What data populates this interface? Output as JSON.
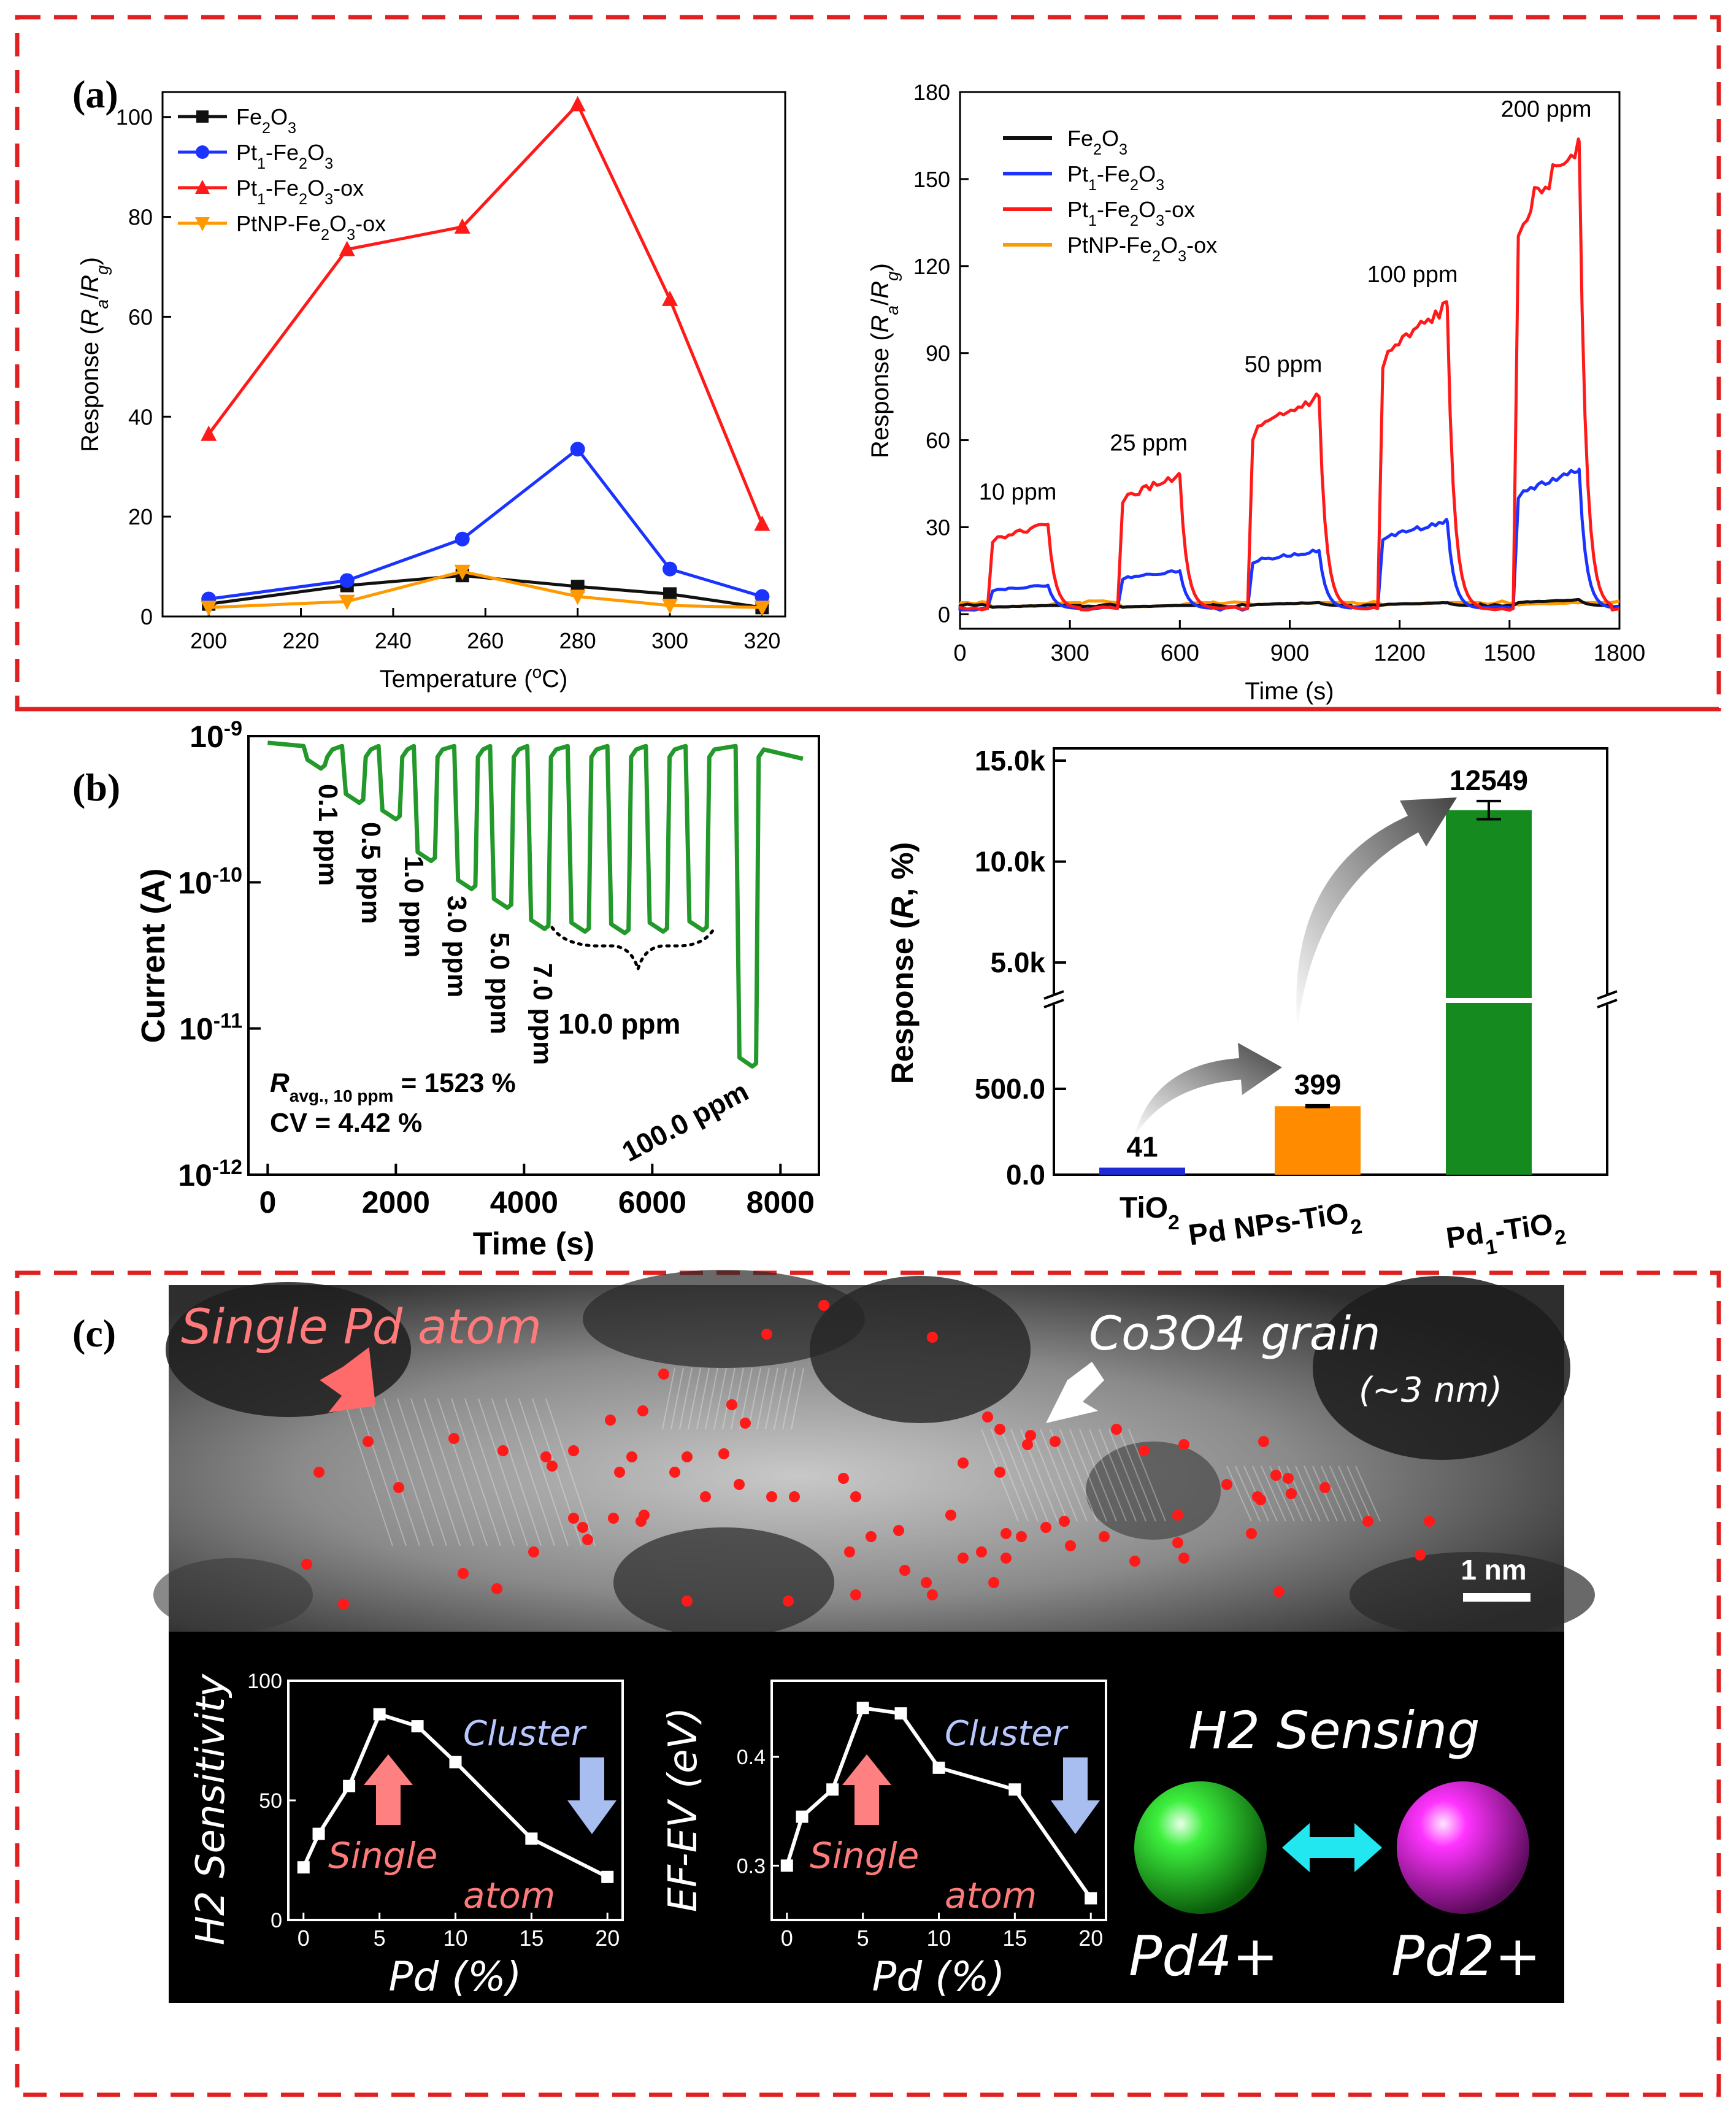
{
  "panel_labels": {
    "a": "(a)",
    "b": "(b)",
    "c": "(c)"
  },
  "colors": {
    "frame": "#e02020",
    "black_series": "#111111",
    "blue_series": "#1a33ff",
    "red_series": "#ff1a1a",
    "orange_series": "#ff9900",
    "green_series": "#22992a",
    "bar_blue": "#1f2bd6",
    "bar_orange": "#ff8c00",
    "bar_green": "#158a1e",
    "tem_dot": "#ff1a1a",
    "pink_text": "#ff7b7b",
    "cluster_text": "#b8c8ff",
    "pd4_sphere": "#22dd22",
    "pd2_sphere": "#ee22ee",
    "arrow_cyan": "#22e6f0"
  },
  "chart_data": [
    {
      "id": "a_left",
      "type": "line",
      "xlabel": "Temperature (°C)",
      "ylabel": "Response (Ra/Rg)",
      "xlim": [
        190,
        325
      ],
      "ylim": [
        0,
        105
      ],
      "xticks": [
        "200",
        "220",
        "240",
        "260",
        "280",
        "300",
        "320"
      ],
      "yticks": [
        "0",
        "20",
        "40",
        "60",
        "80",
        "100"
      ],
      "x": [
        200,
        230,
        255,
        280,
        300,
        320
      ],
      "legend_position": "top-left",
      "series": [
        {
          "name": "Fe2O3",
          "marker": "square",
          "values": [
            2.5,
            6.2,
            8.2,
            6.0,
            4.5,
            1.8
          ]
        },
        {
          "name": "Pt1-Fe2O3",
          "marker": "circle",
          "values": [
            3.5,
            7.2,
            15.5,
            33.5,
            9.5,
            4.0
          ]
        },
        {
          "name": "Pt1-Fe2O3-ox",
          "marker": "triangle-up",
          "values": [
            36.5,
            73.5,
            78.0,
            102.5,
            63.5,
            18.5
          ]
        },
        {
          "name": "PtNP-Fe2O3-ox",
          "marker": "triangle-down",
          "values": [
            1.8,
            3.0,
            9.0,
            4.0,
            2.2,
            1.8
          ]
        }
      ]
    },
    {
      "id": "a_right",
      "type": "line",
      "xlabel": "Time (s)",
      "ylabel": "Response (Ra/Rg)",
      "xlim": [
        0,
        1800
      ],
      "ylim": [
        -5,
        180
      ],
      "xticks": [
        "0",
        "300",
        "600",
        "900",
        "1200",
        "1500",
        "1800"
      ],
      "yticks": [
        "0",
        "30",
        "60",
        "90",
        "120",
        "150",
        "180"
      ],
      "pulse_on_s": [
        75,
        430,
        785,
        1140,
        1510
      ],
      "pulse_off_s": [
        240,
        600,
        980,
        1330,
        1690
      ],
      "annotations": [
        "10 ppm",
        "25 ppm",
        "50 ppm",
        "100 ppm",
        "200 ppm"
      ],
      "legend_position": "top-left",
      "series": [
        {
          "name": "Fe2O3",
          "values": [
            3,
            3,
            4,
            4,
            5
          ]
        },
        {
          "name": "Pt1-Fe2O3",
          "values": [
            10,
            15,
            22,
            32,
            50
          ]
        },
        {
          "name": "Pt1-Fe2O3-ox",
          "values": [
            31,
            48,
            75,
            106,
            163
          ]
        },
        {
          "name": "PtNP-Fe2O3-ox",
          "values": [
            3,
            3,
            4,
            4,
            4
          ]
        }
      ]
    },
    {
      "id": "b_left",
      "type": "line",
      "yscale": "log",
      "xlabel": "Time (s)",
      "ylabel": "Current (A)",
      "xlim": [
        -300,
        8600
      ],
      "ylim": [
        1e-12,
        1e-09
      ],
      "xticks": [
        "0",
        "2000",
        "4000",
        "6000",
        "8000"
      ],
      "baseline_current_A": 9e-10,
      "pulse_min_current_A": [
        6e-10,
        3.5e-10,
        2.7e-10,
        1.4e-10,
        9e-11,
        6.7e-11,
        4.8e-11,
        4.6e-11,
        4.5e-11,
        4.6e-11,
        4.7e-11,
        5.5e-12
      ],
      "pulse_labels": [
        "0.1 ppm",
        "0.5 ppm",
        "1.0 ppm",
        "3.0 ppm",
        "5.0 ppm",
        "7.0 ppm",
        "10.0 ppm",
        "100.0 ppm"
      ],
      "annotation_line1": "= 1523 %",
      "annotation_line2": "CV = 4.42 %"
    },
    {
      "id": "b_right",
      "type": "bar",
      "ylabel": "Response (R, %)",
      "categories": [
        "TiO2",
        "Pd NPs-TiO2",
        "Pd1-TiO2"
      ],
      "values": [
        41,
        399,
        12549
      ],
      "value_labels": [
        "41",
        "399",
        "12549"
      ],
      "error": [
        0,
        5,
        450
      ],
      "yaxis_break": true,
      "lower_yticks": [
        "0.0",
        "500.0"
      ],
      "upper_yticks": [
        "5.0k",
        "10.0k",
        "15.0k"
      ]
    },
    {
      "id": "c_left",
      "type": "line",
      "xlabel": "Pd (%)",
      "ylabel": "H2 Sensitivity",
      "xlim": [
        -1,
        21
      ],
      "ylim": [
        0,
        100
      ],
      "xticks": [
        "0",
        "5",
        "10",
        "15",
        "20"
      ],
      "yticks": [
        "0",
        "50",
        "100"
      ],
      "x": [
        0,
        1,
        3,
        5,
        7.5,
        10,
        15,
        20
      ],
      "values": [
        22,
        36,
        56,
        86,
        81,
        66,
        34,
        18
      ]
    },
    {
      "id": "c_mid",
      "type": "line",
      "xlabel": "Pd (%)",
      "ylabel": "EF-EV (eV)",
      "xlim": [
        -1,
        21
      ],
      "ylim": [
        0.25,
        0.47
      ],
      "xticks": [
        "0",
        "5",
        "10",
        "15",
        "20"
      ],
      "yticks": [
        "0.3",
        "0.4"
      ],
      "x": [
        0,
        1,
        3,
        5,
        7.5,
        10,
        15,
        20
      ],
      "values": [
        0.3,
        0.345,
        0.37,
        0.445,
        0.44,
        0.39,
        0.37,
        0.27
      ]
    }
  ],
  "tem": {
    "label_single": "Single Pd atom",
    "label_grain": "Co3O4 grain",
    "label_grain_size": "(~3 nm)",
    "scale_bar": "1 nm"
  },
  "insets": {
    "single_atom": "Single atom",
    "cluster": "Cluster",
    "h2_sensing": "H2 Sensing",
    "pd4": "Pd4+",
    "pd2": "Pd2+"
  }
}
